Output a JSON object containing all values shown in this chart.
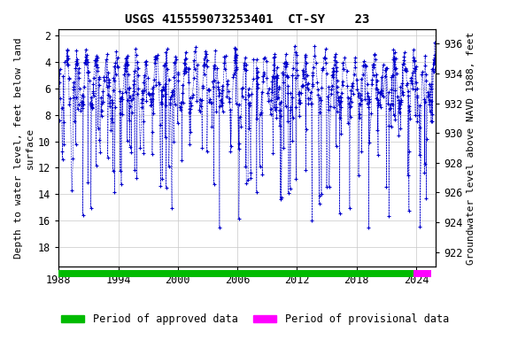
{
  "title": "USGS 415559073253401  CT-SY    23",
  "ylabel_left": "Depth to water level, feet below land\nsurface",
  "ylabel_right": "Groundwater level above NAVD 1988, feet",
  "xlim": [
    1988,
    2026
  ],
  "ylim_left": [
    19.5,
    1.5
  ],
  "ylim_right": [
    921,
    937
  ],
  "yticks_left": [
    2,
    4,
    6,
    8,
    10,
    12,
    14,
    16,
    18
  ],
  "yticks_right": [
    922,
    924,
    926,
    928,
    930,
    932,
    934,
    936
  ],
  "xticks": [
    1988,
    1994,
    2000,
    2006,
    2012,
    2018,
    2024
  ],
  "data_color": "#0000cc",
  "approved_color": "#00bb00",
  "provisional_color": "#ff00ff",
  "approved_start": 1988.0,
  "approved_end": 2023.7,
  "provisional_start": 2023.7,
  "provisional_end": 2025.5,
  "background_color": "#ffffff",
  "grid_color": "#c8c8c8",
  "title_fontsize": 10,
  "axis_label_fontsize": 8,
  "tick_fontsize": 8.5,
  "legend_fontsize": 8.5
}
